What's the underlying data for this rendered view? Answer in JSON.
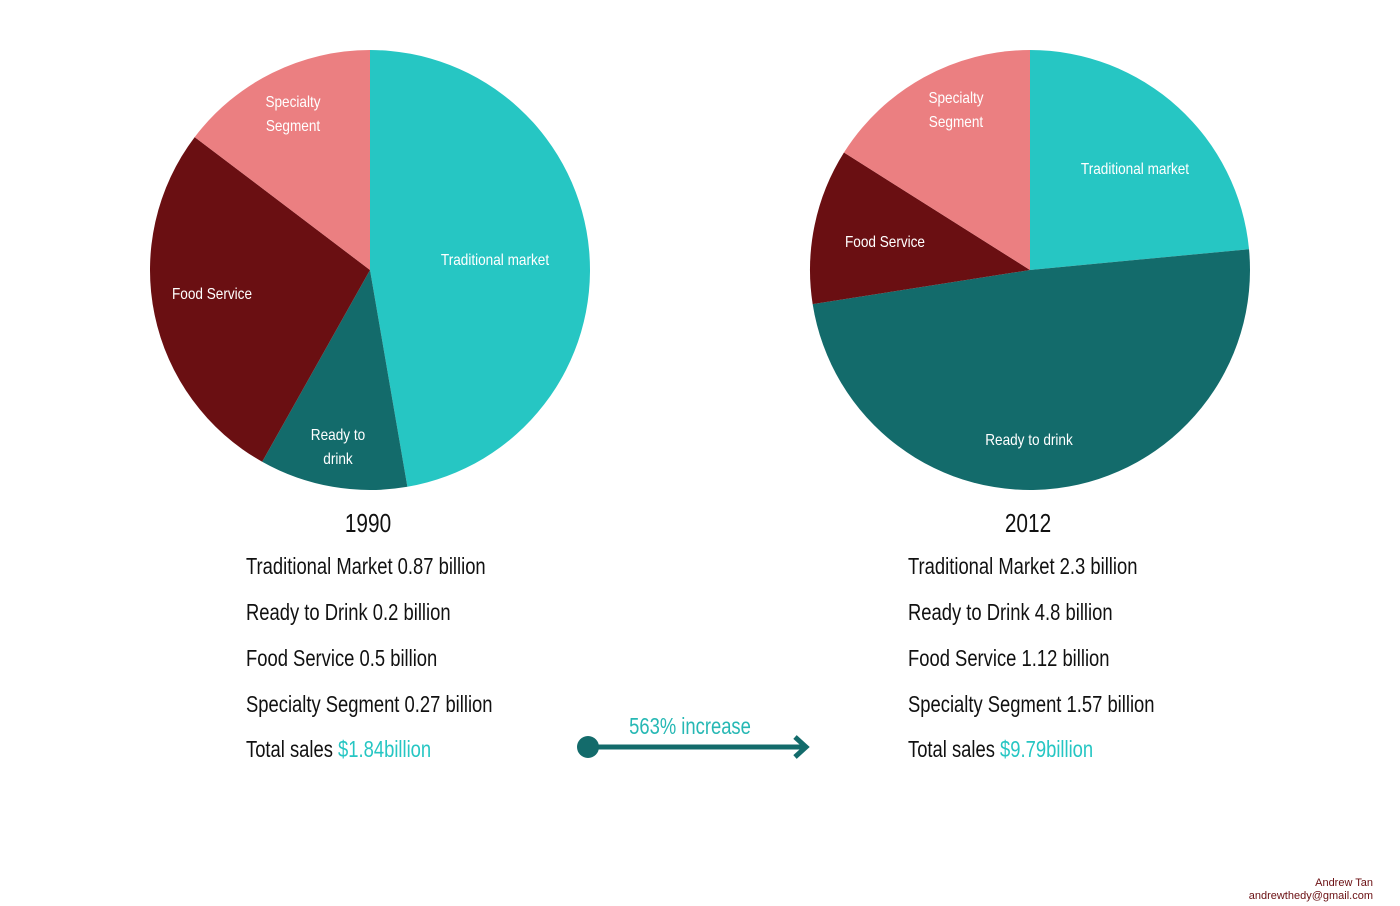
{
  "chart_data": [
    {
      "type": "pie",
      "title": "1990",
      "slices": [
        {
          "label": "Traditional market",
          "label_lines": [
            "Traditional market"
          ],
          "value": 0.87,
          "color": "#26c6c3"
        },
        {
          "label": "Ready to drink",
          "label_lines": [
            "Ready to",
            "drink"
          ],
          "value": 0.2,
          "color": "#136b6b"
        },
        {
          "label": "Food Service",
          "label_lines": [
            "Food Service"
          ],
          "value": 0.5,
          "color": "#6a0f12"
        },
        {
          "label": "Specialty Segment",
          "label_lines": [
            "Specialty",
            "Segment"
          ],
          "value": 0.27,
          "color": "#eb7f81"
        }
      ],
      "stats": [
        "Traditional Market 0.87 billion",
        "Ready to Drink 0.2 billion",
        "Food Service 0.5 billion",
        "Specialty Segment 0.27 billion"
      ],
      "total_label": "Total sales",
      "total_value": "$1.84billion"
    },
    {
      "type": "pie",
      "title": "2012",
      "slices": [
        {
          "label": "Traditional market",
          "label_lines": [
            "Traditional market"
          ],
          "value": 2.3,
          "color": "#26c6c3"
        },
        {
          "label": "Ready to drink",
          "label_lines": [
            "Ready to drink"
          ],
          "value": 4.8,
          "color": "#136b6b"
        },
        {
          "label": "Food Service",
          "label_lines": [
            "Food Service"
          ],
          "value": 1.12,
          "color": "#6a0f12"
        },
        {
          "label": "Specialty Segment",
          "label_lines": [
            "Specialty",
            "Segment"
          ],
          "value": 1.57,
          "color": "#eb7f81"
        }
      ],
      "stats": [
        "Traditional Market 2.3 billion",
        "Ready to Drink 4.8 billion",
        "Food Service 1.12 billion",
        "Specialty Segment 1.57 billion"
      ],
      "total_label": "Total sales",
      "total_value": "$9.79billion"
    }
  ],
  "comparison": {
    "label": "563% increase",
    "color": "#136b6b"
  },
  "credit": {
    "name": "Andrew Tan",
    "email": "andrewthedy@gmail.com"
  }
}
